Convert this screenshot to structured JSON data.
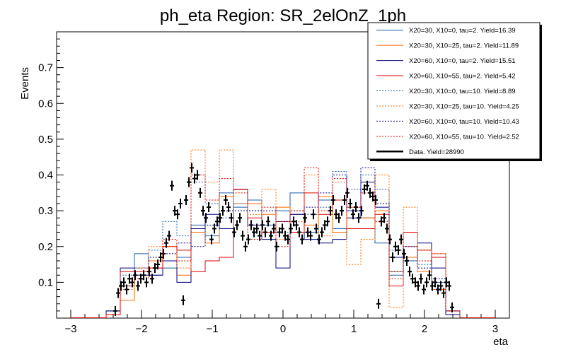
{
  "chart_data": {
    "type": "line",
    "title": "ph_eta Region: SR_2elOnZ_1ph",
    "xlabel": "eta",
    "ylabel": "Events",
    "xlim": [
      -3.2,
      3.2
    ],
    "ylim": [
      0,
      0.8
    ],
    "x_ticks": [
      -3,
      -2,
      -1,
      0,
      1,
      2,
      3
    ],
    "y_ticks": [
      0.1,
      0.2,
      0.3,
      0.4,
      0.5,
      0.6,
      0.7
    ],
    "legend_position": "top-right",
    "histogram_bins": [
      -2.5,
      -2.3,
      -2.1,
      -1.9,
      -1.7,
      -1.5,
      -1.3,
      -1.1,
      -0.9,
      -0.7,
      -0.5,
      -0.3,
      -0.1,
      0.1,
      0.3,
      0.5,
      0.7,
      0.9,
      1.1,
      1.3,
      1.5,
      1.7,
      1.9,
      2.1,
      2.3,
      2.5
    ],
    "series": [
      {
        "name": "X20=30, X10=0, tau=2. Yield=16.39",
        "color": "#1f5fa8",
        "style": "solid",
        "values": [
          0.02,
          0.09,
          0.18,
          0.12,
          0.14,
          0.17,
          0.26,
          0.23,
          0.35,
          0.31,
          0.33,
          0.26,
          0.3,
          0.35,
          0.24,
          0.33,
          0.25,
          0.3,
          0.28,
          0.21,
          0.12,
          0.16,
          0.19,
          0.1,
          0.02
        ]
      },
      {
        "name": "X20=30, X10=25, tau=2. Yield=11.89",
        "color": "#ff6a00",
        "style": "solid",
        "values": [
          0.01,
          0.05,
          0.14,
          0.16,
          0.2,
          0.12,
          0.24,
          0.21,
          0.34,
          0.36,
          0.32,
          0.29,
          0.31,
          0.29,
          0.26,
          0.34,
          0.24,
          0.31,
          0.28,
          0.3,
          0.13,
          0.17,
          0.13,
          0.08,
          0.02
        ]
      },
      {
        "name": "X20=60, X10=0, tau=2. Yield=15.51",
        "color": "#000080",
        "style": "solid",
        "values": [
          0.02,
          0.14,
          0.12,
          0.12,
          0.16,
          0.1,
          0.25,
          0.29,
          0.25,
          0.36,
          0.26,
          0.22,
          0.14,
          0.29,
          0.22,
          0.21,
          0.22,
          0.28,
          0.38,
          0.31,
          0.17,
          0.24,
          0.21,
          0.14,
          0.01
        ]
      },
      {
        "name": "X20=60, X10=55, tau=2. Yield=5.42",
        "color": "#e00000",
        "style": "solid",
        "values": [
          0.01,
          0.13,
          0.13,
          0.14,
          0.2,
          0.19,
          0.13,
          0.16,
          0.17,
          0.36,
          0.28,
          0.24,
          0.27,
          0.24,
          0.35,
          0.29,
          0.33,
          0.25,
          0.25,
          0.29,
          0.09,
          0.24,
          0.19,
          0.17,
          0.02
        ]
      },
      {
        "name": "X20=30, X10=0, tau=10. Yield=8.89",
        "color": "#1f5fa8",
        "style": "dotted",
        "values": [
          0.02,
          0.12,
          0.14,
          0.19,
          0.27,
          0.23,
          0.38,
          0.32,
          0.28,
          0.32,
          0.3,
          0.26,
          0.24,
          0.3,
          0.29,
          0.31,
          0.41,
          0.36,
          0.4,
          0.36,
          0.19,
          0.2,
          0.15,
          0.09,
          0.02
        ]
      },
      {
        "name": "X20=30, X10=25, tau=10. Yield=4.25",
        "color": "#ff6a00",
        "style": "dotted",
        "values": [
          0.01,
          0.08,
          0.12,
          0.2,
          0.2,
          0.14,
          0.47,
          0.38,
          0.47,
          0.32,
          0.29,
          0.36,
          0.22,
          0.27,
          0.4,
          0.23,
          0.38,
          0.15,
          0.22,
          0.4,
          0.03,
          0.31,
          0.19,
          0.18,
          0.02
        ]
      },
      {
        "name": "X20=60, X10=0, tau=10. Yield=10.43",
        "color": "#000080",
        "style": "dotted",
        "values": [
          0.02,
          0.09,
          0.12,
          0.17,
          0.18,
          0.21,
          0.2,
          0.26,
          0.3,
          0.3,
          0.3,
          0.3,
          0.27,
          0.29,
          0.31,
          0.35,
          0.4,
          0.3,
          0.42,
          0.32,
          0.13,
          0.2,
          0.14,
          0.11,
          0.02
        ]
      },
      {
        "name": "X20=60, X10=55, tau=10. Yield=2.52",
        "color": "#e00000",
        "style": "dotted",
        "values": [
          0.01,
          0.09,
          0.11,
          0.14,
          0.22,
          0.16,
          0.4,
          0.33,
          0.39,
          0.35,
          0.22,
          0.31,
          0.2,
          0.3,
          0.42,
          0.3,
          0.39,
          0.31,
          0.35,
          0.27,
          0.11,
          0.2,
          0.16,
          0.18,
          0.02
        ]
      }
    ],
    "data": {
      "name": "Data. Yield=28990",
      "color": "#000000",
      "x": [
        -2.37,
        -2.33,
        -2.29,
        -2.25,
        -2.21,
        -2.17,
        -2.13,
        -2.09,
        -2.05,
        -2.01,
        -1.97,
        -1.93,
        -1.89,
        -1.85,
        -1.81,
        -1.77,
        -1.73,
        -1.69,
        -1.65,
        -1.61,
        -1.57,
        -1.53,
        -1.49,
        -1.45,
        -1.41,
        -1.37,
        -1.33,
        -1.29,
        -1.25,
        -1.21,
        -1.17,
        -1.13,
        -1.09,
        -1.05,
        -1.01,
        -0.97,
        -0.93,
        -0.89,
        -0.85,
        -0.81,
        -0.77,
        -0.73,
        -0.69,
        -0.65,
        -0.61,
        -0.57,
        -0.53,
        -0.49,
        -0.45,
        -0.41,
        -0.37,
        -0.33,
        -0.29,
        -0.25,
        -0.21,
        -0.17,
        -0.13,
        -0.09,
        -0.05,
        -0.01,
        0.03,
        0.07,
        0.11,
        0.15,
        0.19,
        0.23,
        0.27,
        0.31,
        0.35,
        0.39,
        0.43,
        0.47,
        0.51,
        0.55,
        0.59,
        0.63,
        0.67,
        0.71,
        0.75,
        0.79,
        0.83,
        0.87,
        0.91,
        0.95,
        0.99,
        1.03,
        1.07,
        1.11,
        1.15,
        1.19,
        1.23,
        1.27,
        1.31,
        1.35,
        1.39,
        1.43,
        1.47,
        1.51,
        1.55,
        1.59,
        1.63,
        1.67,
        1.71,
        1.75,
        1.79,
        1.83,
        1.87,
        1.91,
        1.95,
        1.99,
        2.03,
        2.07,
        2.11,
        2.15,
        2.19,
        2.23,
        2.27,
        2.31,
        2.35,
        2.39
      ],
      "y": [
        0.02,
        0.07,
        0.09,
        0.1,
        0.08,
        0.11,
        0.1,
        0.12,
        0.09,
        0.11,
        0.12,
        0.1,
        0.13,
        0.11,
        0.14,
        0.15,
        0.17,
        0.18,
        0.21,
        0.23,
        0.37,
        0.3,
        0.29,
        0.32,
        0.05,
        0.33,
        0.38,
        0.42,
        0.39,
        0.4,
        0.35,
        0.3,
        0.28,
        0.31,
        0.22,
        0.25,
        0.27,
        0.28,
        0.3,
        0.33,
        0.31,
        0.28,
        0.24,
        0.26,
        0.28,
        0.23,
        0.2,
        0.22,
        0.26,
        0.24,
        0.25,
        0.23,
        0.26,
        0.24,
        0.27,
        0.23,
        0.25,
        0.2,
        0.24,
        0.25,
        0.23,
        0.22,
        0.25,
        0.27,
        0.26,
        0.24,
        0.22,
        0.28,
        0.24,
        0.23,
        0.29,
        0.25,
        0.22,
        0.24,
        0.26,
        0.27,
        0.3,
        0.33,
        0.29,
        0.28,
        0.3,
        0.33,
        0.35,
        0.32,
        0.29,
        0.31,
        0.28,
        0.3,
        0.36,
        0.37,
        0.35,
        0.34,
        0.33,
        0.04,
        0.27,
        0.28,
        0.25,
        0.22,
        0.17,
        0.2,
        0.19,
        0.22,
        0.18,
        0.16,
        0.13,
        0.11,
        0.1,
        0.09,
        0.11,
        0.08,
        0.1,
        0.12,
        0.09,
        0.1,
        0.08,
        0.09,
        0.07,
        0.1,
        0.09,
        0.03
      ]
    }
  }
}
